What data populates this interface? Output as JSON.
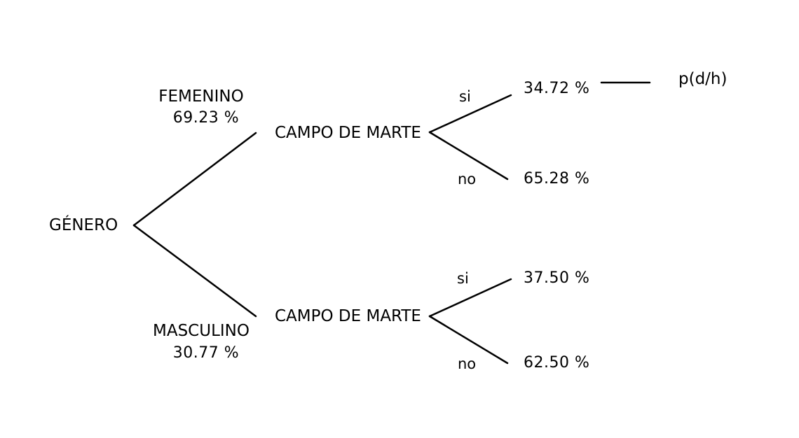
{
  "root": {
    "label": "GÉNERO"
  },
  "branches": [
    {
      "label": "FEMENINO",
      "percent": "69.23 %",
      "node": "CAMPO DE MARTE",
      "outcomes": [
        {
          "label": "si",
          "percent": "34.72 %"
        },
        {
          "label": "no",
          "percent": "65.28 %"
        }
      ]
    },
    {
      "label": "MASCULINO",
      "percent": "30.77 %",
      "node": "CAMPO DE MARTE",
      "outcomes": [
        {
          "label": "si",
          "percent": "37.50 %"
        },
        {
          "label": "no",
          "percent": "62.50 %"
        }
      ]
    }
  ],
  "annotation": {
    "label": "p(d/h)"
  },
  "colors": {
    "line": "#000000",
    "text": "#000000",
    "background": "#ffffff"
  }
}
